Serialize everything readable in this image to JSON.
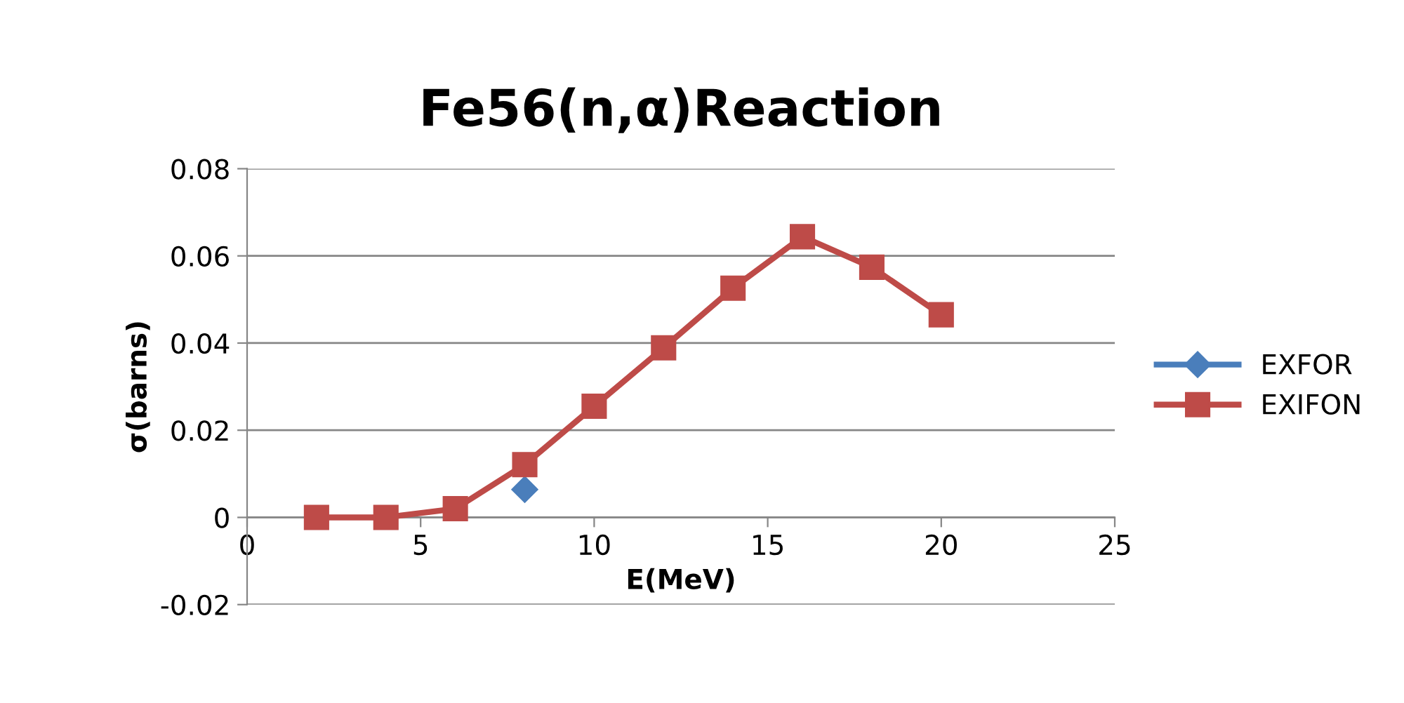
{
  "chart_data": {
    "type": "line",
    "title": "Fe56(n,α)Reaction",
    "xlabel": "E(MeV)",
    "ylabel": "σ(barns)",
    "xlim": [
      0,
      25
    ],
    "xticks": [
      0,
      5,
      10,
      15,
      20,
      25
    ],
    "ylim": [
      -0.02,
      0.08
    ],
    "yticks": [
      -0.02,
      0,
      0.02,
      0.04,
      0.06,
      0.08
    ],
    "grid": "y",
    "legend": "right",
    "series": [
      {
        "name": "EXFOR",
        "type": "scatter",
        "marker": "diamond",
        "color": "#4a7ebb",
        "x": [
          8
        ],
        "values": [
          0.0064
        ]
      },
      {
        "name": "EXIFON",
        "marker": "square",
        "color": "#be4b48",
        "x": [
          2,
          4,
          6,
          8,
          10,
          12,
          14,
          16,
          18,
          20
        ],
        "values": [
          0.0,
          0.0,
          0.002,
          0.0121,
          0.0255,
          0.0389,
          0.0526,
          0.0644,
          0.0574,
          0.0465
        ]
      }
    ]
  }
}
